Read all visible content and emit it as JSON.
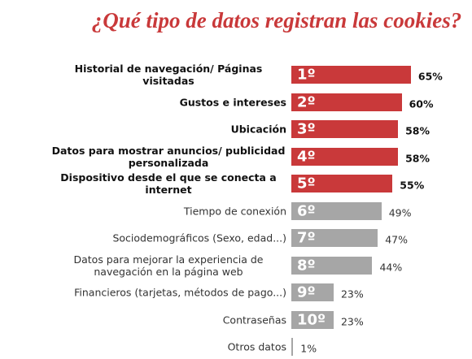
{
  "chart_data": {
    "type": "bar",
    "orientation": "horizontal",
    "title": "¿Qué tipo de datos registran las cookies?",
    "categories": [
      "Historial de navegación/ Páginas visitadas",
      "Gustos e intereses",
      "Ubicación",
      "Datos para mostrar anuncios/ publicidad personalizada",
      "Dispositivo desde el que se conecta a internet",
      "Tiempo de conexión",
      "Sociodemográficos (Sexo, edad...)",
      "Datos para mejorar la experiencia de navegación en la página web",
      "Financieros (tarjetas, métodos de pago...)",
      "Contraseñas",
      "Otros datos"
    ],
    "values": [
      65,
      60,
      58,
      58,
      55,
      49,
      47,
      44,
      23,
      23,
      1
    ],
    "value_labels": [
      "65%",
      "60%",
      "58%",
      "58%",
      "55%",
      "49%",
      "47%",
      "44%",
      "23%",
      "23%",
      "1%"
    ],
    "ranks": [
      "1º",
      "2º",
      "3º",
      "4º",
      "5º",
      "6º",
      "7º",
      "8º",
      "9º",
      "10º",
      null
    ],
    "colors": [
      "#c9393a",
      "#c9393a",
      "#c9393a",
      "#c9393a",
      "#c9393a",
      "#a6a6a6",
      "#a6a6a6",
      "#a6a6a6",
      "#a6a6a6",
      "#a6a6a6",
      "#a6a6a6"
    ]
  }
}
